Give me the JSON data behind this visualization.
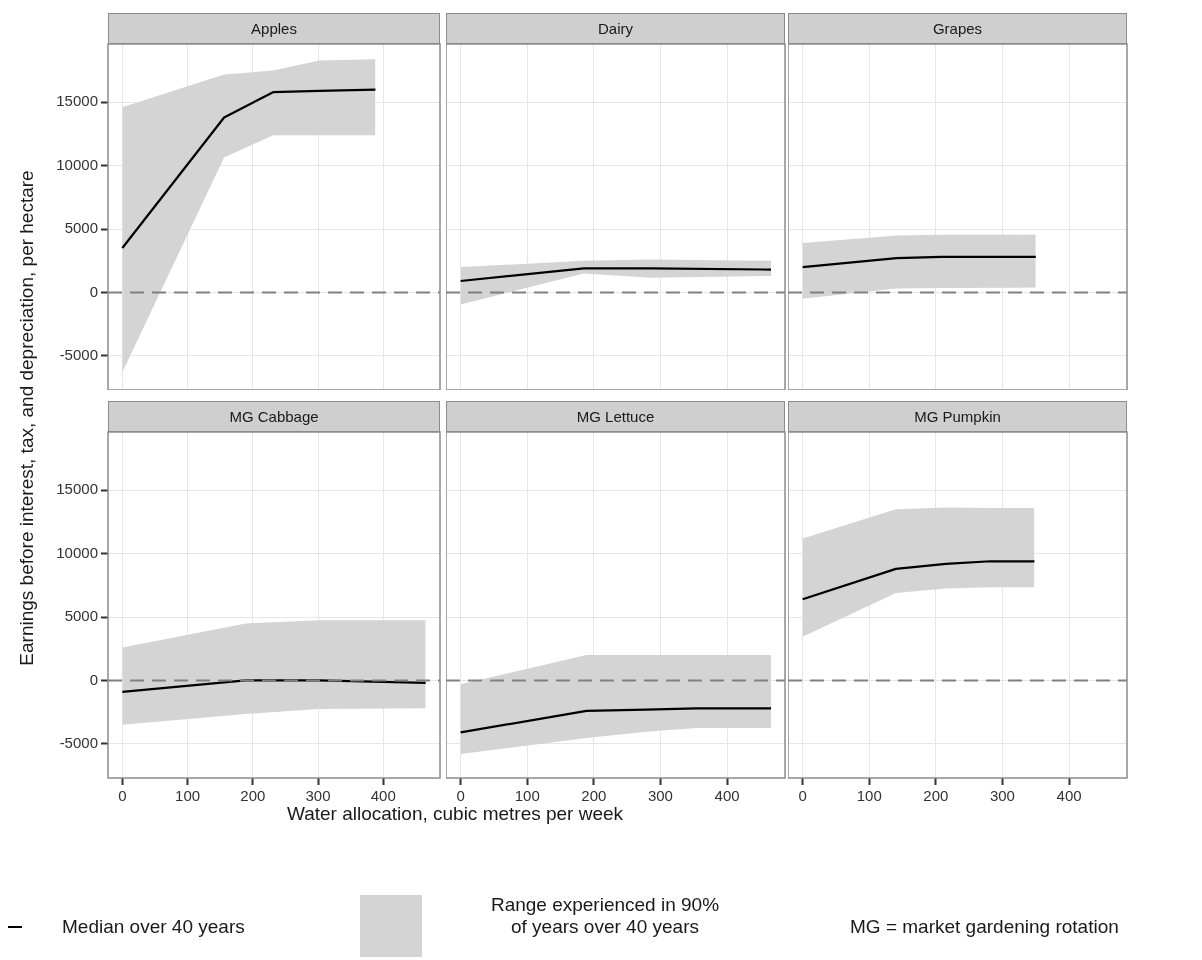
{
  "chart_data": [
    {
      "type": "line",
      "title": "Apples",
      "ylabel": "Earnings before interest, tax, and depreciation, per hectare",
      "x": [
        0,
        156,
        231,
        302,
        388
      ],
      "series": [
        {
          "name": "Median over 40 years",
          "color": "#000000",
          "values": [
            3500,
            13800,
            15800,
            15900,
            16000
          ],
          "lower": [
            -6300,
            10650,
            12400,
            12400,
            12400
          ],
          "upper": [
            14600,
            17200,
            17500,
            18300,
            18400
          ]
        }
      ],
      "xlim": [
        -22,
        487
      ],
      "ylim": [
        -7700,
        19600
      ],
      "xticks": [
        0,
        100,
        200,
        300,
        400
      ],
      "yticks": [
        -5000,
        0,
        5000,
        10000,
        15000
      ],
      "grid": true,
      "tick_labels": "y",
      "legend": "bottom",
      "ref_lines": [
        {
          "axis": "y",
          "value": 0,
          "color": "#808080",
          "line_style": "dashed"
        }
      ],
      "annotations": [
        "Range experienced in 90% of years over 40 years",
        "MG = market gardening rotation"
      ]
    },
    {
      "type": "line",
      "title": "Dairy",
      "x": [
        0,
        185,
        286,
        466
      ],
      "series": [
        {
          "color": "#000000",
          "values": [
            900,
            1900,
            1900,
            1800
          ],
          "lower": [
            -950,
            1500,
            1150,
            1300
          ],
          "upper": [
            2000,
            2500,
            2600,
            2500
          ]
        }
      ],
      "xlim": [
        -22,
        487
      ],
      "ylim": [
        -7700,
        19600
      ],
      "xticks": [
        0,
        100,
        200,
        300,
        400
      ],
      "yticks": [
        -5000,
        0,
        5000,
        10000,
        15000
      ],
      "grid": true,
      "tick_labels": false,
      "ref_lines": [
        {
          "axis": "y",
          "value": 0,
          "color": "#808080",
          "line_style": "dashed"
        }
      ]
    },
    {
      "type": "line",
      "title": "Grapes",
      "x": [
        0,
        141,
        208,
        350
      ],
      "series": [
        {
          "color": "#000000",
          "values": [
            2000,
            2700,
            2800,
            2800
          ],
          "lower": [
            -500,
            300,
            350,
            380
          ],
          "upper": [
            3900,
            4500,
            4550,
            4560
          ]
        }
      ],
      "xlim": [
        -22,
        487
      ],
      "ylim": [
        -7700,
        19600
      ],
      "xticks": [
        0,
        100,
        200,
        300,
        400
      ],
      "yticks": [
        -5000,
        0,
        5000,
        10000,
        15000
      ],
      "grid": true,
      "tick_labels": false,
      "ref_lines": [
        {
          "axis": "y",
          "value": 0,
          "color": "#808080",
          "line_style": "dashed"
        }
      ]
    },
    {
      "type": "line",
      "title": "MG Cabbage",
      "x": [
        0,
        189,
        301,
        465
      ],
      "series": [
        {
          "color": "#000000",
          "values": [
            -900,
            0,
            0,
            -200
          ],
          "lower": [
            -3500,
            -2650,
            -2250,
            -2200
          ],
          "upper": [
            2600,
            4500,
            4750,
            4750
          ]
        }
      ],
      "xlim": [
        -22,
        487
      ],
      "ylim": [
        -7700,
        19600
      ],
      "xticks": [
        0,
        100,
        200,
        300,
        400
      ],
      "yticks": [
        -5000,
        0,
        5000,
        10000,
        15000
      ],
      "grid": true,
      "ref_lines": [
        {
          "axis": "y",
          "value": 0,
          "color": "#808080",
          "line_style": "dashed"
        }
      ]
    },
    {
      "type": "line",
      "title": "MG Lettuce",
      "xlabel": "Water allocation, cubic metres per week",
      "x": [
        0,
        189,
        279,
        354,
        466
      ],
      "series": [
        {
          "color": "#000000",
          "values": [
            -4100,
            -2400,
            -2300,
            -2200,
            -2200
          ],
          "lower": [
            -5800,
            -4550,
            -4050,
            -3750,
            -3750
          ],
          "upper": [
            -300,
            2000,
            2000,
            2000,
            2000
          ]
        }
      ],
      "xlim": [
        -22,
        487
      ],
      "ylim": [
        -7700,
        19600
      ],
      "xticks": [
        0,
        100,
        200,
        300,
        400
      ],
      "yticks": [
        -5000,
        0,
        5000,
        10000,
        15000
      ],
      "grid": true,
      "tick_labels": "x",
      "ref_lines": [
        {
          "axis": "y",
          "value": 0,
          "color": "#808080",
          "line_style": "dashed"
        }
      ]
    },
    {
      "type": "line",
      "title": "MG Pumpkin",
      "x": [
        0,
        140,
        215,
        282,
        348
      ],
      "series": [
        {
          "color": "#000000",
          "values": [
            6400,
            8800,
            9200,
            9400,
            9400
          ],
          "lower": [
            3450,
            6900,
            7250,
            7350,
            7350
          ],
          "upper": [
            11200,
            13500,
            13650,
            13600,
            13600
          ]
        }
      ],
      "xlim": [
        -22,
        487
      ],
      "ylim": [
        -7700,
        19600
      ],
      "xticks": [
        0,
        100,
        200,
        300,
        400
      ],
      "yticks": [
        -5000,
        0,
        5000,
        10000,
        15000
      ],
      "grid": true,
      "tick_labels": "x",
      "ref_lines": [
        {
          "axis": "y",
          "value": 0,
          "color": "#808080",
          "line_style": "dashed"
        }
      ]
    }
  ]
}
